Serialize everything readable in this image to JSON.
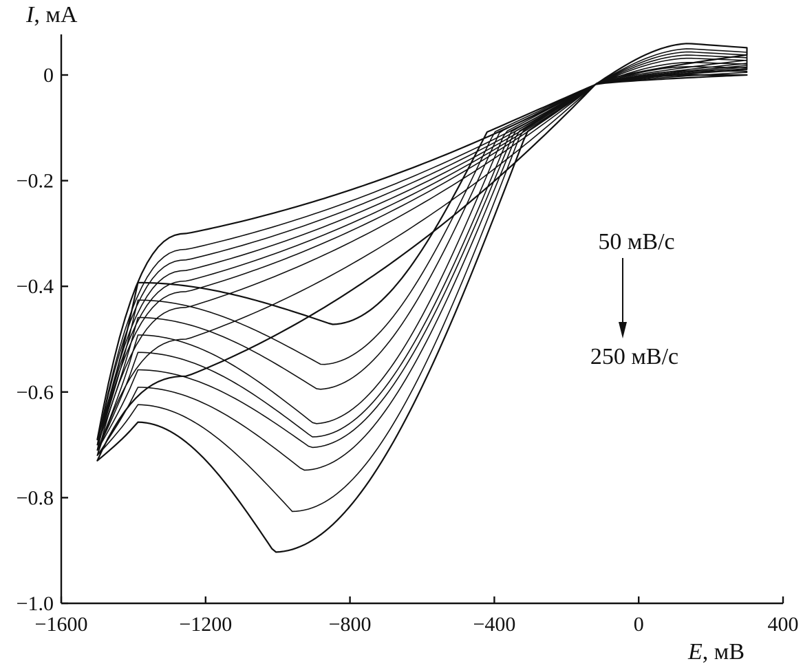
{
  "chart_data": {
    "type": "line",
    "title": "",
    "xlabel": {
      "symbol": "E",
      "unit": ", мВ"
    },
    "ylabel": {
      "symbol": "I",
      "unit": ", мА"
    },
    "xlim": [
      -1600,
      400
    ],
    "ylim": [
      -1.0,
      0.08
    ],
    "x_ticks": [
      -1600,
      -1200,
      -800,
      -400,
      0,
      400
    ],
    "x_tick_labels": [
      "−1600",
      "−1200",
      "−800",
      "−400",
      "0",
      "400"
    ],
    "y_ticks": [
      0,
      -0.2,
      -0.4,
      -0.6,
      -0.8,
      -1.0
    ],
    "y_tick_labels": [
      "0",
      "−0.2",
      "−0.4",
      "−0.6",
      "−0.8",
      "−1.0"
    ],
    "grid": false,
    "legend": "none",
    "line_color": "#111111",
    "annotation": {
      "from_label": "50 мВ/с",
      "to_label": "250 мВ/с"
    },
    "series": [
      {
        "scan_rate_rank": 1,
        "start_current": -0.69,
        "return_current": 0.0,
        "anodic_peak": 0.0,
        "min_current": -0.472,
        "min_potential": -850,
        "plateau_current": -0.3,
        "rise_potential": -420
      },
      {
        "scan_rate_rank": 2,
        "start_current": -0.7,
        "return_current": 0.005,
        "anodic_peak": 0.008,
        "min_current": -0.548,
        "min_potential": -880,
        "plateau_current": -0.33,
        "rise_potential": -400
      },
      {
        "scan_rate_rank": 3,
        "start_current": -0.7,
        "return_current": 0.01,
        "anodic_peak": 0.016,
        "min_current": -0.595,
        "min_potential": -890,
        "plateau_current": -0.35,
        "rise_potential": -385
      },
      {
        "scan_rate_rank": 4,
        "start_current": -0.71,
        "return_current": 0.012,
        "anodic_peak": 0.024,
        "min_current": -0.66,
        "min_potential": -900,
        "plateau_current": -0.37,
        "rise_potential": -370
      },
      {
        "scan_rate_rank": 5,
        "start_current": -0.71,
        "return_current": 0.015,
        "anodic_peak": 0.032,
        "min_current": -0.685,
        "min_potential": -905,
        "plateau_current": -0.39,
        "rise_potential": -355
      },
      {
        "scan_rate_rank": 6,
        "start_current": -0.71,
        "return_current": 0.018,
        "anodic_peak": 0.038,
        "min_current": -0.705,
        "min_potential": -910,
        "plateau_current": -0.41,
        "rise_potential": -345
      },
      {
        "scan_rate_rank": 7,
        "start_current": -0.72,
        "return_current": 0.022,
        "anodic_peak": 0.044,
        "min_current": -0.748,
        "min_potential": -930,
        "plateau_current": -0.44,
        "rise_potential": -335
      },
      {
        "scan_rate_rank": 8,
        "start_current": -0.72,
        "return_current": 0.028,
        "anodic_peak": 0.05,
        "min_current": -0.826,
        "min_potential": -960,
        "plateau_current": -0.5,
        "rise_potential": -325
      },
      {
        "scan_rate_rank": 9,
        "start_current": -0.73,
        "return_current": 0.038,
        "anodic_peak": 0.06,
        "min_current": -0.903,
        "min_potential": -1010,
        "plateau_current": -0.57,
        "rise_potential": -310
      }
    ]
  }
}
